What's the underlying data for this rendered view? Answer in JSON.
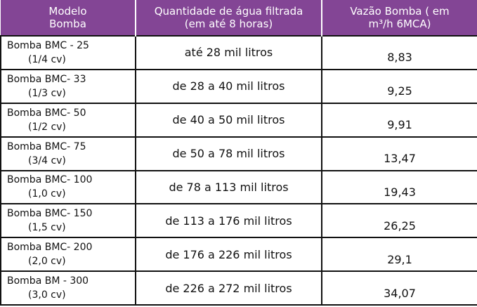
{
  "table": {
    "header": [
      [
        "Modelo",
        "Bomba"
      ],
      [
        "Quantidade de água filtrada",
        "(em até 8 horas)"
      ],
      [
        "Vazão Bomba ( em",
        "m³/h 6MCA)"
      ]
    ],
    "rows": [
      [
        [
          "Bomba BMC - 25",
          "(1/4 cv)"
        ],
        "até 28 mil litros",
        "8,83"
      ],
      [
        [
          "Bomba BMC- 33",
          "(1/3 cv)"
        ],
        "de 28 a 40 mil litros",
        "9,25"
      ],
      [
        [
          "Bomba BMC- 50",
          "(1/2 cv)"
        ],
        "de 40 a 50 mil litros",
        "9,91"
      ],
      [
        [
          "Bomba BMC- 75",
          "(3/4 cv)"
        ],
        "de 50 a 78 mil litros",
        "13,47"
      ],
      [
        [
          "Bomba BMC- 100",
          "(1,0 cv)"
        ],
        "de 78 a 113 mil litros",
        "19,43"
      ],
      [
        [
          "Bomba BMC- 150",
          "(1,5 cv)"
        ],
        "de 113 a 176 mil litros",
        "26,25"
      ],
      [
        [
          "Bomba BMC- 200",
          "(2,0 cv)"
        ],
        "de 176 a 226 mil litros",
        "29,1"
      ],
      [
        [
          "Bomba BM - 300",
          "(3,0 cv)"
        ],
        "de 226 a 272 mil litros",
        "34,07"
      ]
    ]
  }
}
